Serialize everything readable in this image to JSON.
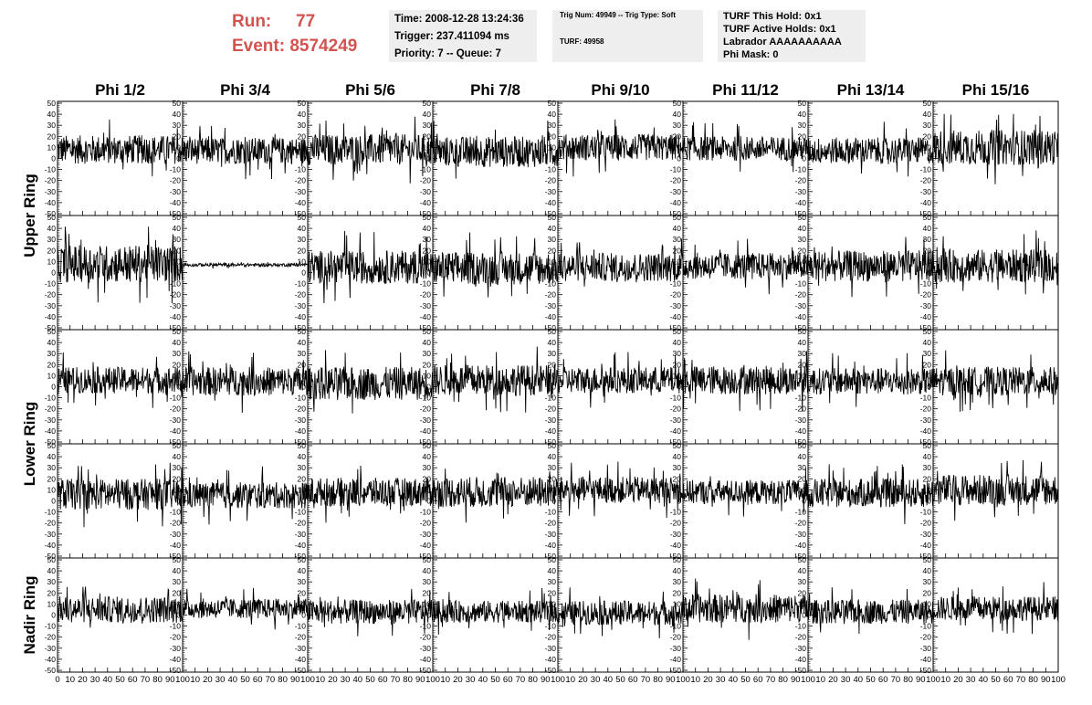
{
  "header": {
    "run_label": "Run:",
    "run_value": "77",
    "event_label": "Event:",
    "event_value": "8574249",
    "time": "Time: 2008-12-28 13:24:36",
    "trigger": "Trigger: 237.411094 ms",
    "priority": "Priority: 7 -- Queue: 7",
    "trig_num": "Trig Num: 49949 -- Trig Type: Soft",
    "turf": "TURF: 49958",
    "turf_this_hold": "TURF This Hold: 0x1",
    "turf_active_holds": "TURF Active Holds: 0x1",
    "labrador": "Labrador AAAAAAAAAA",
    "phi_mask": "Phi Mask: 0"
  },
  "chart_data": {
    "type": "line",
    "columns": [
      "Phi 1/2",
      "Phi 3/4",
      "Phi 5/6",
      "Phi 7/8",
      "Phi 9/10",
      "Phi 11/12",
      "Phi 13/14",
      "Phi 15/16"
    ],
    "row_labels": [
      {
        "label": "Upper Ring",
        "rows": [
          0,
          1
        ]
      },
      {
        "label": "Lower Ring",
        "rows": [
          2,
          3
        ]
      },
      {
        "label": "Nadir Ring",
        "rows": [
          4
        ]
      }
    ],
    "xlim": [
      0,
      100
    ],
    "ylim": [
      -50,
      50
    ],
    "y_tick_labels": [
      "50",
      "40",
      "30",
      "20",
      "10",
      "0",
      "-10",
      "-20",
      "-30",
      "-40",
      "-50"
    ],
    "y_tick_values": [
      50,
      40,
      30,
      20,
      10,
      0,
      -10,
      -20,
      -30,
      -40,
      -50
    ],
    "x_tick_labels": [
      "0",
      "10",
      "20",
      "30",
      "40",
      "50",
      "60",
      "70",
      "80",
      "90",
      "100"
    ],
    "x_tick_values": [
      0,
      10,
      20,
      30,
      40,
      50,
      60,
      70,
      80,
      90,
      100
    ],
    "panel_traces": [
      [
        {
          "center": 8,
          "amp": 13
        },
        {
          "center": 7,
          "amp": 12
        },
        {
          "center": 8,
          "amp": 14
        },
        {
          "center": 6,
          "amp": 14
        },
        {
          "center": 10,
          "amp": 12
        },
        {
          "center": 9,
          "amp": 11
        },
        {
          "center": 7,
          "amp": 12
        },
        {
          "center": 10,
          "amp": 16
        }
      ],
      [
        {
          "center": 8,
          "amp": 17
        },
        {
          "center": 7,
          "amp": 1.5
        },
        {
          "center": 5,
          "amp": 15
        },
        {
          "center": 4,
          "amp": 15
        },
        {
          "center": 5,
          "amp": 13
        },
        {
          "center": 6,
          "amp": 12
        },
        {
          "center": 6,
          "amp": 14
        },
        {
          "center": 6,
          "amp": 15
        }
      ],
      [
        {
          "center": 6,
          "amp": 12
        },
        {
          "center": 5,
          "amp": 13
        },
        {
          "center": 3,
          "amp": 15
        },
        {
          "center": 6,
          "amp": 14
        },
        {
          "center": 6,
          "amp": 12
        },
        {
          "center": 6,
          "amp": 13
        },
        {
          "center": 5,
          "amp": 12
        },
        {
          "center": 5,
          "amp": 13
        }
      ],
      [
        {
          "center": 6,
          "amp": 14
        },
        {
          "center": 5,
          "amp": 12
        },
        {
          "center": 8,
          "amp": 13
        },
        {
          "center": 8,
          "amp": 14
        },
        {
          "center": 10,
          "amp": 12
        },
        {
          "center": 8,
          "amp": 11
        },
        {
          "center": 7,
          "amp": 13
        },
        {
          "center": 10,
          "amp": 14
        }
      ],
      [
        {
          "center": 5,
          "amp": 12
        },
        {
          "center": 6,
          "amp": 9
        },
        {
          "center": 3,
          "amp": 11
        },
        {
          "center": 3,
          "amp": 10
        },
        {
          "center": 2,
          "amp": 11
        },
        {
          "center": 6,
          "amp": 13
        },
        {
          "center": 3,
          "amp": 11
        },
        {
          "center": 6,
          "amp": 11
        }
      ]
    ]
  }
}
